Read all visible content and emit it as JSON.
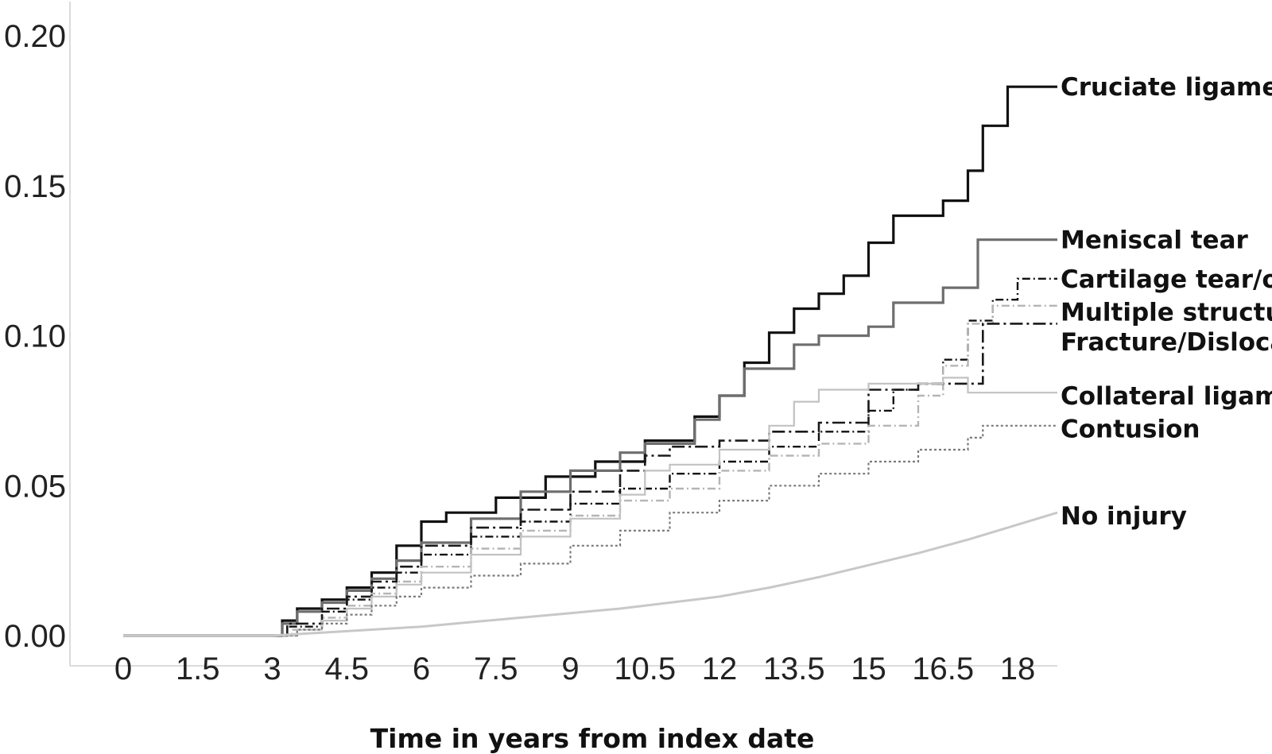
{
  "chart_data": {
    "type": "line",
    "title": "",
    "xlabel": "Time in years from index date",
    "ylabel": "",
    "xlim": [
      -1.2,
      18.8
    ],
    "ylim": [
      -0.01,
      0.21
    ],
    "xticks": [
      "0",
      "1.5",
      "3",
      "4.5",
      "6",
      "7.5",
      "9",
      "10.5",
      "12",
      "13.5",
      "15",
      "16.5",
      "18"
    ],
    "xtick_values": [
      0,
      1.5,
      3,
      4.5,
      6,
      7.5,
      9,
      10.5,
      12,
      13.5,
      15,
      16.5,
      18
    ],
    "yticks": [
      "0.00",
      "0.05",
      "0.10",
      "0.15",
      "0.20"
    ],
    "ytick_values": [
      0.0,
      0.05,
      0.1,
      0.15,
      0.2
    ],
    "grid": false,
    "legend": "direct labels at line ends (right)",
    "series": [
      {
        "name": "Cruciate ligament",
        "color": "#111111",
        "style": "solid",
        "points": [
          [
            0,
            0
          ],
          [
            3,
            0
          ],
          [
            3.2,
            0.005
          ],
          [
            3.5,
            0.009
          ],
          [
            4,
            0.012
          ],
          [
            4.5,
            0.016
          ],
          [
            5,
            0.021
          ],
          [
            5.5,
            0.03
          ],
          [
            6,
            0.038
          ],
          [
            6.5,
            0.041
          ],
          [
            7.5,
            0.046
          ],
          [
            8.5,
            0.053
          ],
          [
            9.5,
            0.058
          ],
          [
            10.5,
            0.065
          ],
          [
            11.5,
            0.073
          ],
          [
            12,
            0.08
          ],
          [
            12.5,
            0.091
          ],
          [
            13,
            0.101
          ],
          [
            13.5,
            0.109
          ],
          [
            14,
            0.114
          ],
          [
            14.5,
            0.12
          ],
          [
            15,
            0.131
          ],
          [
            15.5,
            0.14
          ],
          [
            16.5,
            0.145
          ],
          [
            17,
            0.155
          ],
          [
            17.3,
            0.17
          ],
          [
            17.8,
            0.183
          ],
          [
            18.8,
            0.183
          ]
        ]
      },
      {
        "name": "Meniscal tear",
        "color": "#6e6e6e",
        "style": "solid",
        "points": [
          [
            0,
            0
          ],
          [
            3,
            0
          ],
          [
            3.2,
            0.004
          ],
          [
            3.5,
            0.008
          ],
          [
            4,
            0.011
          ],
          [
            4.5,
            0.015
          ],
          [
            5,
            0.019
          ],
          [
            5.5,
            0.025
          ],
          [
            6,
            0.031
          ],
          [
            7,
            0.039
          ],
          [
            8,
            0.048
          ],
          [
            9,
            0.055
          ],
          [
            10,
            0.061
          ],
          [
            10.5,
            0.064
          ],
          [
            11.5,
            0.072
          ],
          [
            12,
            0.08
          ],
          [
            12.5,
            0.089
          ],
          [
            13.5,
            0.097
          ],
          [
            14,
            0.1
          ],
          [
            15,
            0.103
          ],
          [
            15.5,
            0.111
          ],
          [
            16.5,
            0.116
          ],
          [
            17.2,
            0.132
          ],
          [
            18.8,
            0.132
          ]
        ]
      },
      {
        "name": "Cartilage tear/other",
        "color": "#111111",
        "style": "dash-dot",
        "points": [
          [
            0,
            0
          ],
          [
            3,
            0
          ],
          [
            3.3,
            0.003
          ],
          [
            4,
            0.008
          ],
          [
            4.5,
            0.012
          ],
          [
            5,
            0.016
          ],
          [
            5.5,
            0.021
          ],
          [
            6,
            0.027
          ],
          [
            7,
            0.033
          ],
          [
            8,
            0.038
          ],
          [
            9,
            0.044
          ],
          [
            10,
            0.049
          ],
          [
            11,
            0.054
          ],
          [
            12,
            0.058
          ],
          [
            13,
            0.063
          ],
          [
            14,
            0.068
          ],
          [
            15,
            0.075
          ],
          [
            15.5,
            0.082
          ],
          [
            16,
            0.084
          ],
          [
            16.5,
            0.092
          ],
          [
            17,
            0.105
          ],
          [
            17.5,
            0.112
          ],
          [
            18,
            0.119
          ],
          [
            18.8,
            0.119
          ]
        ]
      },
      {
        "name": "Multiple structures",
        "color": "#b5b5b5",
        "style": "dash-dot",
        "points": [
          [
            0,
            0
          ],
          [
            3,
            0
          ],
          [
            3.4,
            0.002
          ],
          [
            4,
            0.006
          ],
          [
            4.5,
            0.01
          ],
          [
            5,
            0.014
          ],
          [
            5.5,
            0.018
          ],
          [
            6,
            0.023
          ],
          [
            7,
            0.029
          ],
          [
            8,
            0.035
          ],
          [
            9,
            0.04
          ],
          [
            10,
            0.045
          ],
          [
            11,
            0.049
          ],
          [
            12,
            0.055
          ],
          [
            13,
            0.06
          ],
          [
            14,
            0.064
          ],
          [
            15,
            0.07
          ],
          [
            16,
            0.08
          ],
          [
            16.5,
            0.09
          ],
          [
            17,
            0.104
          ],
          [
            17.5,
            0.11
          ],
          [
            18.8,
            0.11
          ]
        ]
      },
      {
        "name": "Fracture/Dislocation",
        "color": "#1a1a1a",
        "style": "long-dash-dot",
        "points": [
          [
            0,
            0
          ],
          [
            3,
            0
          ],
          [
            3.3,
            0.004
          ],
          [
            4,
            0.009
          ],
          [
            4.5,
            0.013
          ],
          [
            5,
            0.018
          ],
          [
            5.5,
            0.023
          ],
          [
            6,
            0.03
          ],
          [
            7,
            0.036
          ],
          [
            8,
            0.042
          ],
          [
            9,
            0.048
          ],
          [
            10,
            0.055
          ],
          [
            10.5,
            0.06
          ],
          [
            11,
            0.063
          ],
          [
            12,
            0.065
          ],
          [
            13,
            0.068
          ],
          [
            14,
            0.071
          ],
          [
            15,
            0.082
          ],
          [
            16,
            0.084
          ],
          [
            17,
            0.084
          ],
          [
            17.3,
            0.104
          ],
          [
            18.8,
            0.104
          ]
        ]
      },
      {
        "name": "Collateral ligament",
        "color": "#c2c2c2",
        "style": "solid-thin",
        "points": [
          [
            0,
            0
          ],
          [
            3,
            0
          ],
          [
            3.5,
            0.002
          ],
          [
            4,
            0.005
          ],
          [
            4.5,
            0.009
          ],
          [
            5,
            0.013
          ],
          [
            5.5,
            0.017
          ],
          [
            6,
            0.021
          ],
          [
            7,
            0.027
          ],
          [
            8,
            0.033
          ],
          [
            9,
            0.039
          ],
          [
            10,
            0.047
          ],
          [
            10.5,
            0.055
          ],
          [
            11,
            0.057
          ],
          [
            12,
            0.062
          ],
          [
            13,
            0.07
          ],
          [
            13.5,
            0.078
          ],
          [
            14,
            0.082
          ],
          [
            15,
            0.084
          ],
          [
            16,
            0.084
          ],
          [
            16.5,
            0.086
          ],
          [
            17,
            0.081
          ],
          [
            18.8,
            0.081
          ]
        ]
      },
      {
        "name": "Contusion",
        "color": "#7a7a7a",
        "style": "dotted",
        "points": [
          [
            0,
            0
          ],
          [
            3,
            0
          ],
          [
            3.5,
            0.002
          ],
          [
            4,
            0.004
          ],
          [
            4.5,
            0.007
          ],
          [
            5,
            0.01
          ],
          [
            5.5,
            0.013
          ],
          [
            6,
            0.016
          ],
          [
            7,
            0.02
          ],
          [
            8,
            0.024
          ],
          [
            9,
            0.03
          ],
          [
            10,
            0.035
          ],
          [
            11,
            0.041
          ],
          [
            12,
            0.045
          ],
          [
            13,
            0.05
          ],
          [
            14,
            0.054
          ],
          [
            15,
            0.058
          ],
          [
            16,
            0.062
          ],
          [
            17,
            0.066
          ],
          [
            17.3,
            0.07
          ],
          [
            18.8,
            0.07
          ]
        ]
      },
      {
        "name": "No injury",
        "color": "#c8c8c8",
        "style": "solid-smooth",
        "points": [
          [
            0,
            0
          ],
          [
            3,
            0
          ],
          [
            4,
            0.001
          ],
          [
            5,
            0.002
          ],
          [
            6,
            0.003
          ],
          [
            7,
            0.0045
          ],
          [
            8,
            0.006
          ],
          [
            9,
            0.0075
          ],
          [
            10,
            0.009
          ],
          [
            11,
            0.011
          ],
          [
            12,
            0.013
          ],
          [
            13,
            0.016
          ],
          [
            14,
            0.0195
          ],
          [
            15,
            0.0235
          ],
          [
            16,
            0.0275
          ],
          [
            17,
            0.032
          ],
          [
            18,
            0.037
          ],
          [
            18.8,
            0.041
          ]
        ]
      }
    ],
    "series_labels": [
      {
        "text": "Cruciate ligament",
        "y": 0.183
      },
      {
        "text": "Meniscal tear",
        "y": 0.132
      },
      {
        "text": "Cartilage tear/other",
        "y": 0.119
      },
      {
        "text": "Multiple structures",
        "y": 0.108
      },
      {
        "text": "Fracture/Dislocation",
        "y": 0.098
      },
      {
        "text": "Collateral ligament",
        "y": 0.08
      },
      {
        "text": "Contusion",
        "y": 0.069
      },
      {
        "text": "No injury",
        "y": 0.04
      }
    ]
  }
}
